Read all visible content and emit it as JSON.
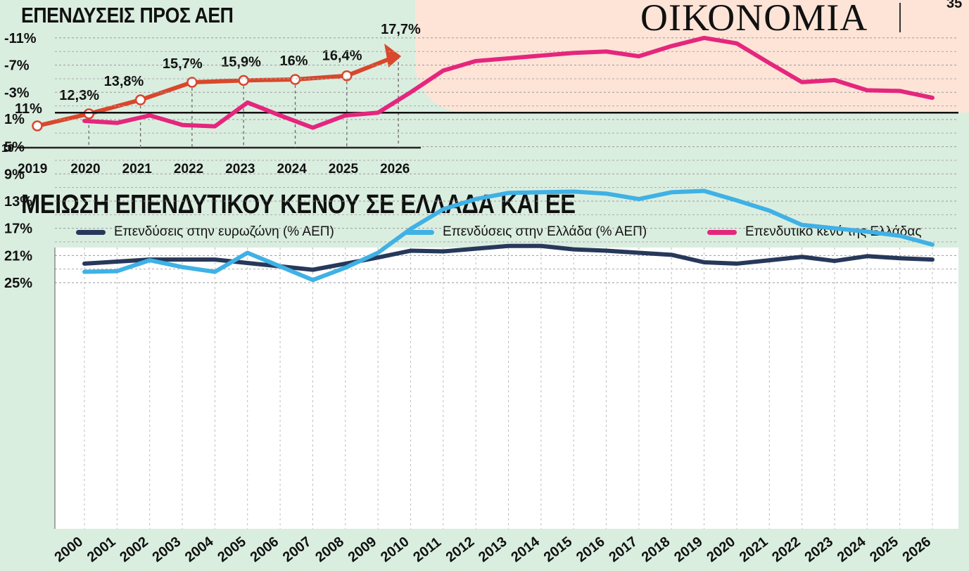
{
  "header": {
    "section": "ΟΙΚΟΝΟΜΙΑ",
    "page_number": "35"
  },
  "chart_data": [
    {
      "type": "line",
      "title": "ΕΠΕΝΔΥΣΕΙΣ ΠΡΟΣ ΑΕΠ",
      "x": [
        "2019",
        "2020",
        "2021",
        "2022",
        "2023",
        "2024",
        "2025",
        "2026"
      ],
      "values": [
        11,
        12.3,
        13.8,
        15.7,
        15.9,
        16,
        16.4,
        17.7
      ],
      "data_labels": [
        "11%",
        "12,3%",
        "13,8%",
        "15,7%",
        "15,9%",
        "16%",
        "16,4%",
        "17,7%"
      ],
      "y_baseline_label": "10",
      "color": "#d9472c"
    },
    {
      "type": "line",
      "title": "ΜΕΙΩΣΗ ΕΠΕΝΔΥΤΙΚΟΥ ΚΕΝΟΥ ΣΕ ΕΛΛΑΔΑ ΚΑΙ ΕΕ",
      "x": [
        "2000",
        "2001",
        "2002",
        "2003",
        "2004",
        "2005",
        "2006",
        "2007",
        "2008",
        "2009",
        "2010",
        "2011",
        "2012",
        "2013",
        "2014",
        "2015",
        "2016",
        "2017",
        "2018",
        "2019",
        "2020",
        "2021",
        "2022",
        "2023",
        "2024",
        "2025",
        "2026"
      ],
      "y_ticks": [
        "25%",
        "21%",
        "17%",
        "13%",
        "9%",
        "5%",
        "1%",
        "-3%",
        "-7%",
        "-11%"
      ],
      "y_tick_values": [
        25,
        21,
        17,
        13,
        9,
        5,
        1,
        -3,
        -7,
        -11
      ],
      "grid": true,
      "legend_position": "top",
      "series": [
        {
          "name": "Επενδύσεις στην ευρωζώνη (% ΑΕΠ)",
          "color": "#27385a",
          "values": [
            22.2,
            21.9,
            21.6,
            21.6,
            21.6,
            22.1,
            22.6,
            23.1,
            22.2,
            21.3,
            20.3,
            20.4,
            20.0,
            19.6,
            19.6,
            20.1,
            20.3,
            20.6,
            20.9,
            22.0,
            22.2,
            21.7,
            21.2,
            21.8,
            21.1,
            21.4,
            21.6
          ]
        },
        {
          "name": "Επενδύσεις στην Ελλάδα (% ΑΕΠ)",
          "color": "#3fb1e5",
          "values": [
            23.4,
            23.3,
            21.7,
            22.7,
            23.4,
            20.6,
            22.6,
            24.6,
            22.8,
            20.6,
            17.1,
            14.2,
            12.7,
            11.8,
            11.7,
            11.6,
            11.9,
            12.7,
            11.7,
            11.5,
            12.9,
            14.4,
            16.5,
            17.0,
            17.5,
            18.1,
            19.4
          ]
        },
        {
          "name": "Επενδυτικό κενό της Ελλάδας",
          "color": "#e5267d",
          "values": [
            1.2,
            1.5,
            0.4,
            1.8,
            2.0,
            -1.5,
            0.4,
            2.2,
            0.4,
            0.0,
            -3.0,
            -6.2,
            -7.6,
            -8.0,
            -8.4,
            -8.8,
            -9.0,
            -8.3,
            -9.8,
            -11.0,
            -10.2,
            -7.3,
            -4.5,
            -4.8,
            -3.3,
            -3.2,
            -2.2
          ]
        }
      ]
    }
  ]
}
